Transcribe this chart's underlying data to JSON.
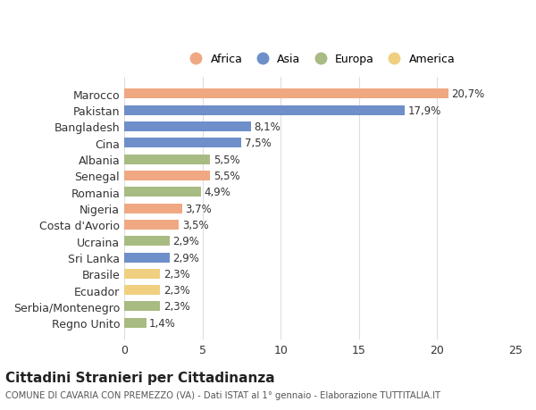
{
  "countries": [
    "Marocco",
    "Pakistan",
    "Bangladesh",
    "Cina",
    "Albania",
    "Senegal",
    "Romania",
    "Nigeria",
    "Costa d'Avorio",
    "Ucraina",
    "Sri Lanka",
    "Brasile",
    "Ecuador",
    "Serbia/Montenegro",
    "Regno Unito"
  ],
  "values": [
    20.7,
    17.9,
    8.1,
    7.5,
    5.5,
    5.5,
    4.9,
    3.7,
    3.5,
    2.9,
    2.9,
    2.3,
    2.3,
    2.3,
    1.4
  ],
  "labels": [
    "20,7%",
    "17,9%",
    "8,1%",
    "7,5%",
    "5,5%",
    "5,5%",
    "4,9%",
    "3,7%",
    "3,5%",
    "2,9%",
    "2,9%",
    "2,3%",
    "2,3%",
    "2,3%",
    "1,4%"
  ],
  "continents": [
    "Africa",
    "Asia",
    "Asia",
    "Asia",
    "Europa",
    "Africa",
    "Europa",
    "Africa",
    "Africa",
    "Europa",
    "Asia",
    "America",
    "America",
    "Europa",
    "Europa"
  ],
  "colors": {
    "Africa": "#F0A882",
    "Asia": "#6E8FC9",
    "Europa": "#A8BB82",
    "America": "#F0D080"
  },
  "legend_order": [
    "Africa",
    "Asia",
    "Europa",
    "America"
  ],
  "xlim": [
    0,
    25
  ],
  "xticks": [
    0,
    5,
    10,
    15,
    20,
    25
  ],
  "title": "Cittadini Stranieri per Cittadinanza",
  "subtitle": "COMUNE DI CAVARIA CON PREMEZZO (VA) - Dati ISTAT al 1° gennaio - Elaborazione TUTTITALIA.IT",
  "bg_color": "#ffffff",
  "grid_color": "#dddddd",
  "bar_height": 0.6
}
